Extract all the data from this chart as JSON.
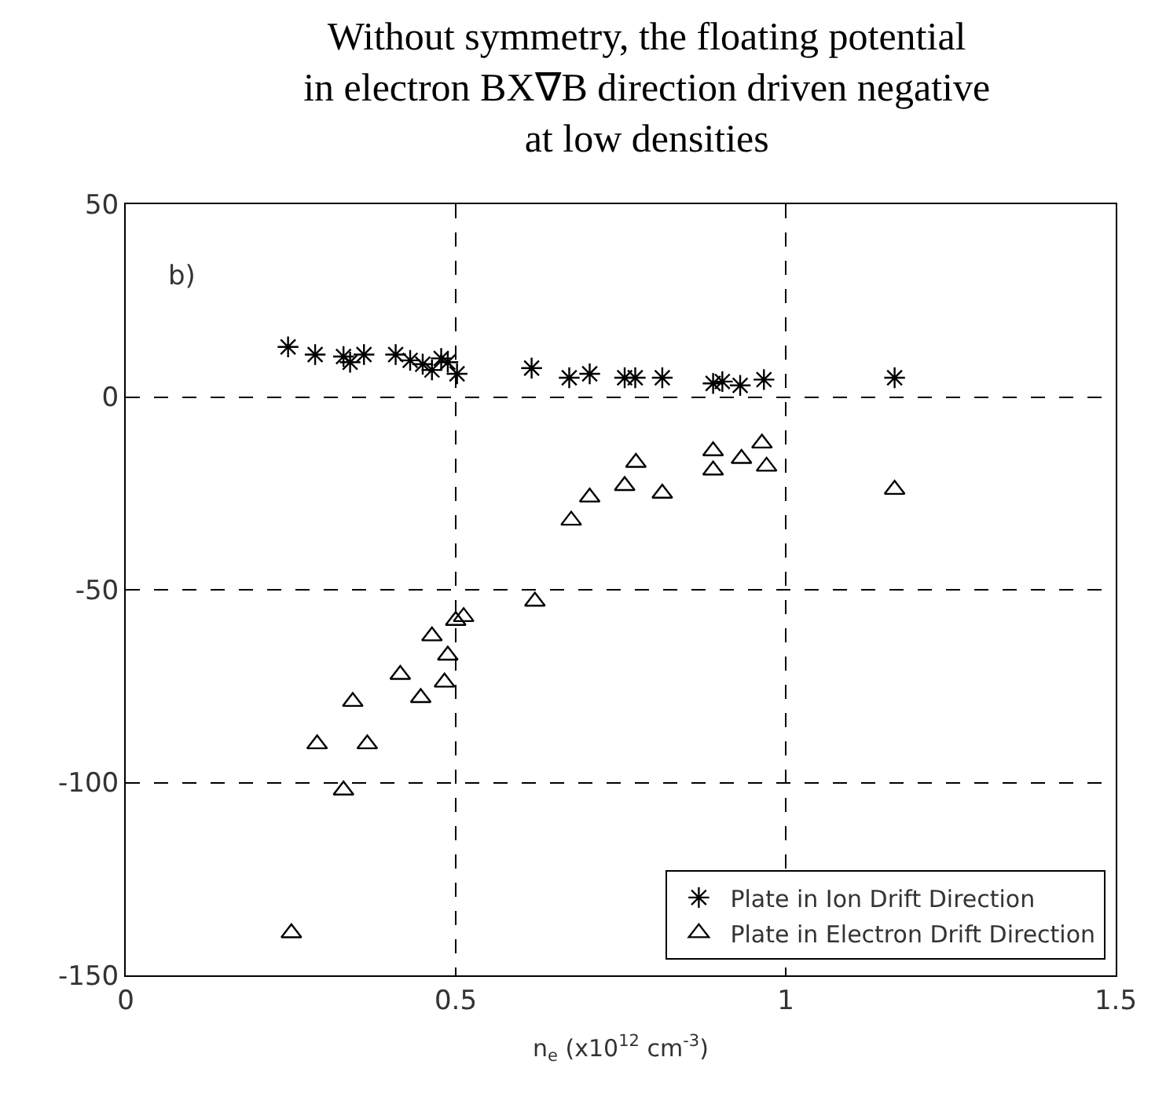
{
  "chart_data": {
    "type": "scatter",
    "title": "Without symmetry, the floating potential in electron BX∇B direction driven negative at low densities",
    "xlabel": "n$_{e}$ (x10$^{12}$ cm$^{-3}$)",
    "annotations": [
      "b)"
    ],
    "xlim": [
      0,
      1.5
    ],
    "xticks": [
      0,
      0.5,
      1,
      1.5
    ],
    "ylim": [
      -150,
      50
    ],
    "yticks": [
      -150,
      -100,
      -50,
      0,
      50
    ],
    "grid": true,
    "legend": "bottom right",
    "series": [
      {
        "name": "Plate in Ion Drift Direction",
        "color": "#000000",
        "marker": "cross",
        "x": [
          0.246,
          0.287,
          0.33,
          0.34,
          0.361,
          0.409,
          0.431,
          0.45,
          0.464,
          0.478,
          0.488,
          0.502,
          0.615,
          0.672,
          0.703,
          0.756,
          0.772,
          0.813,
          0.89,
          0.904,
          0.931,
          0.967,
          1.165
        ],
        "values": [
          13,
          11,
          10.5,
          9,
          11,
          11,
          9.5,
          8.5,
          7,
          10,
          9,
          6,
          7.5,
          5,
          6,
          5,
          5,
          5,
          3.5,
          4,
          3,
          4.5,
          5
        ]
      },
      {
        "name": "Plate in Electron Drift Direction",
        "color": "#000000",
        "marker": "triangle",
        "x": [
          0.251,
          0.29,
          0.33,
          0.344,
          0.366,
          0.416,
          0.447,
          0.464,
          0.483,
          0.488,
          0.5,
          0.512,
          0.62,
          0.675,
          0.703,
          0.756,
          0.773,
          0.813,
          0.89,
          0.89,
          0.933,
          0.964,
          0.971,
          1.165
        ],
        "values": [
          -139,
          -90,
          -102,
          -79,
          -90,
          -72,
          -78,
          -62,
          -74,
          -67,
          -58,
          -57,
          -53,
          -32,
          -26,
          -23,
          -17,
          -25,
          -19,
          -14,
          -16,
          -12,
          -18,
          -24
        ]
      }
    ]
  }
}
